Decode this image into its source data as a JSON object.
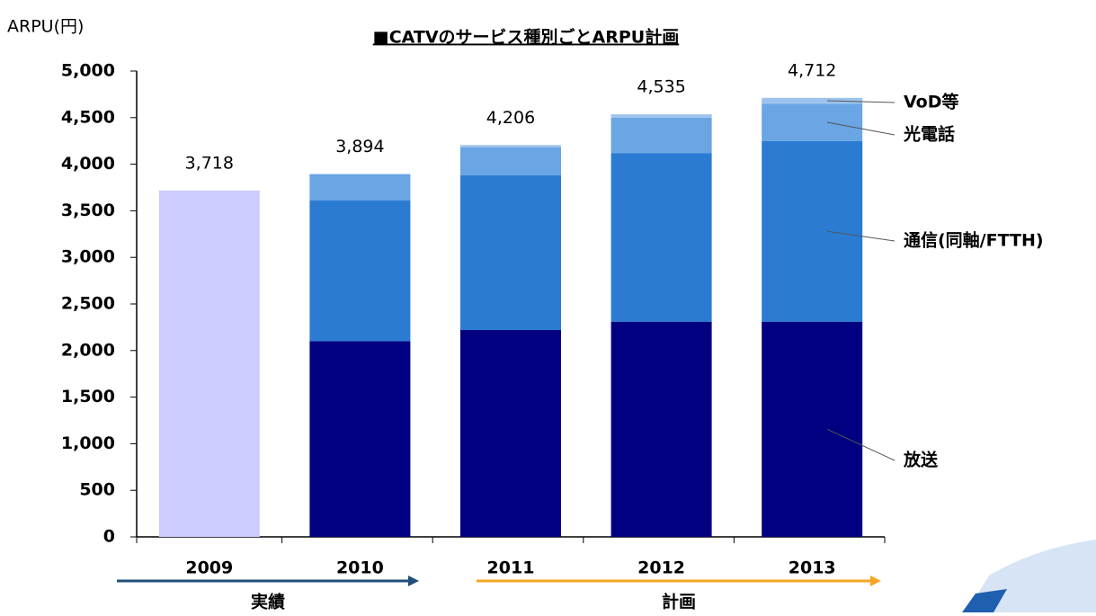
{
  "chart_data": {
    "type": "stacked_bar",
    "title": "■CATVのサービス種別ごとARPU計画",
    "y_label": "ARPU(円)",
    "categories": [
      "2009",
      "2010",
      "2011",
      "2012",
      "2013"
    ],
    "series": [
      {
        "color": "#ccccff",
        "values": [
          3718,
          null,
          null,
          null,
          null
        ]
      },
      {
        "name": "放送",
        "color": "#000080",
        "values": [
          null,
          2100,
          2220,
          2310,
          2310
        ]
      },
      {
        "name": "通信(同軸/FTTH)",
        "color": "#2b7bd3",
        "values": [
          null,
          1510,
          1660,
          1810,
          1940
        ]
      },
      {
        "name": "光電話",
        "color": "#6aa5e4",
        "values": [
          null,
          284,
          300,
          380,
          400
        ]
      },
      {
        "name": "VoD等",
        "color": "#9cc3ee",
        "values": [
          null,
          null,
          26,
          35,
          62
        ]
      }
    ],
    "totals": {
      "values": [
        3718,
        3894,
        4206,
        4535,
        4712
      ],
      "value_labels": [
        "3,718",
        "3,894",
        "4,206",
        "4,535",
        "4,712"
      ]
    },
    "periods": [
      {
        "label": "実績",
        "color": "#1f4e79"
      },
      {
        "label": "計画",
        "color": "#f5a623"
      }
    ],
    "ylim": [
      0,
      5000
    ],
    "yticks": [
      0,
      500,
      {
        "value": 1000,
        "label": "1,000"
      },
      {
        "value": 1500,
        "label": "1,500"
      },
      {
        "value": 2000,
        "label": "2,000"
      },
      {
        "value": 2500,
        "label": "2,500"
      },
      {
        "value": 3000,
        "label": "3,000"
      },
      {
        "value": 3500,
        "label": "3,500"
      },
      {
        "value": 4000,
        "label": "4,000"
      },
      {
        "value": 4500,
        "label": "4,500"
      },
      {
        "value": 5000,
        "label": "5,000"
      }
    ]
  }
}
